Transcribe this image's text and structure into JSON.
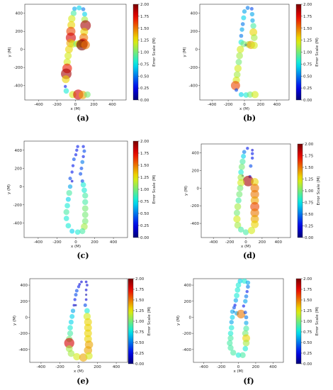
{
  "colorbar": {
    "label": "Error Scale (M)",
    "ticks": [
      "0.00",
      "0.25",
      "0.50",
      "0.75",
      "1.00",
      "1.25",
      "1.50",
      "1.75",
      "2.00"
    ],
    "range": [
      0,
      2
    ],
    "colormap": "jet"
  },
  "chart_data": [
    {
      "type": "scatter",
      "panel_label": "(a)",
      "xlabel": "x (M)",
      "ylabel": "y (M)",
      "xlim": [
        -550,
        550
      ],
      "ylim": [
        -560,
        500
      ],
      "xticks": [
        -400,
        -200,
        0,
        200,
        400
      ],
      "yticks": [
        -400,
        -200,
        0,
        200,
        400
      ],
      "points": [
        {
          "x": -10,
          "y": 450,
          "e": 0.6
        },
        {
          "x": 40,
          "y": 460,
          "e": 0.7
        },
        {
          "x": 85,
          "y": 445,
          "e": 0.5
        },
        {
          "x": -20,
          "y": 400,
          "e": 0.9
        },
        {
          "x": 100,
          "y": 390,
          "e": 0.7
        },
        {
          "x": -40,
          "y": 340,
          "e": 1.2
        },
        {
          "x": 100,
          "y": 330,
          "e": 1.1
        },
        {
          "x": -45,
          "y": 270,
          "e": 1.3
        },
        {
          "x": 110,
          "y": 265,
          "e": 1.9
        },
        {
          "x": -50,
          "y": 200,
          "e": 1.6
        },
        {
          "x": 95,
          "y": 195,
          "e": 1.3
        },
        {
          "x": -50,
          "y": 130,
          "e": 1.8
        },
        {
          "x": 90,
          "y": 130,
          "e": 1.5
        },
        {
          "x": -55,
          "y": 70,
          "e": 1.4
        },
        {
          "x": 85,
          "y": 70,
          "e": 1.7
        },
        {
          "x": -30,
          "y": 60,
          "e": 1.2
        },
        {
          "x": 10,
          "y": 60,
          "e": 1.0
        },
        {
          "x": 40,
          "y": 60,
          "e": 1.3
        },
        {
          "x": 70,
          "y": 50,
          "e": 2.0
        },
        {
          "x": 110,
          "y": 50,
          "e": 1.5
        },
        {
          "x": -70,
          "y": 0,
          "e": 1.3
        },
        {
          "x": -80,
          "y": -70,
          "e": 1.2
        },
        {
          "x": -90,
          "y": -140,
          "e": 1.2
        },
        {
          "x": -90,
          "y": -210,
          "e": 1.7
        },
        {
          "x": -100,
          "y": -270,
          "e": 1.9
        },
        {
          "x": -105,
          "y": -330,
          "e": 1.3
        },
        {
          "x": -110,
          "y": -410,
          "e": 0.3
        },
        {
          "x": -100,
          "y": -460,
          "e": 0.8
        },
        {
          "x": -30,
          "y": -500,
          "e": 1.2
        },
        {
          "x": 30,
          "y": -500,
          "e": 1.8
        },
        {
          "x": 80,
          "y": -505,
          "e": 1.4
        },
        {
          "x": 130,
          "y": -500,
          "e": 1.0
        }
      ]
    },
    {
      "type": "scatter",
      "panel_label": "(b)",
      "xlabel": "x (M)",
      "ylabel": "y (M)",
      "xlim": [
        -550,
        550
      ],
      "ylim": [
        -560,
        500
      ],
      "xticks": [
        -400,
        -200,
        0,
        200,
        400
      ],
      "yticks": [
        -400,
        -200,
        0,
        200,
        400
      ],
      "points": [
        {
          "x": 40,
          "y": 460,
          "e": 0.5
        },
        {
          "x": 90,
          "y": 450,
          "e": 0.4
        },
        {
          "x": 0,
          "y": 420,
          "e": 0.6
        },
        {
          "x": 95,
          "y": 390,
          "e": 0.6
        },
        {
          "x": -10,
          "y": 350,
          "e": 0.7
        },
        {
          "x": 100,
          "y": 320,
          "e": 0.6
        },
        {
          "x": -20,
          "y": 280,
          "e": 0.5
        },
        {
          "x": 110,
          "y": 260,
          "e": 0.9
        },
        {
          "x": -30,
          "y": 220,
          "e": 0.6
        },
        {
          "x": 110,
          "y": 190,
          "e": 1.3
        },
        {
          "x": -40,
          "y": 150,
          "e": 0.5
        },
        {
          "x": 120,
          "y": 130,
          "e": 1.1
        },
        {
          "x": -40,
          "y": 80,
          "e": 0.8
        },
        {
          "x": -10,
          "y": 60,
          "e": 1.0
        },
        {
          "x": 20,
          "y": 50,
          "e": 0.2
        },
        {
          "x": 50,
          "y": 55,
          "e": 1.1
        },
        {
          "x": 80,
          "y": 50,
          "e": 1.4
        },
        {
          "x": 120,
          "y": 45,
          "e": 1.2
        },
        {
          "x": -50,
          "y": 0,
          "e": 1.2
        },
        {
          "x": -60,
          "y": -70,
          "e": 1.1
        },
        {
          "x": -70,
          "y": -140,
          "e": 1.0
        },
        {
          "x": -80,
          "y": -210,
          "e": 1.2
        },
        {
          "x": -90,
          "y": -280,
          "e": 1.1
        },
        {
          "x": -100,
          "y": -340,
          "e": 1.2
        },
        {
          "x": -110,
          "y": -400,
          "e": 1.6
        },
        {
          "x": -100,
          "y": -450,
          "e": 0.4
        },
        {
          "x": -40,
          "y": -500,
          "e": 0.7
        },
        {
          "x": 20,
          "y": -505,
          "e": 0.8
        },
        {
          "x": 70,
          "y": -500,
          "e": 1.0
        },
        {
          "x": 130,
          "y": -500,
          "e": 1.2
        }
      ]
    },
    {
      "type": "scatter",
      "panel_label": "(c)",
      "xlabel": "x (M)",
      "ylabel": "y (M)",
      "xlim": [
        -550,
        550
      ],
      "ylim": [
        -560,
        500
      ],
      "xticks": [
        -400,
        -200,
        0,
        200,
        400
      ],
      "yticks": [
        -400,
        -200,
        0,
        200,
        400
      ],
      "points": [
        {
          "x": 20,
          "y": 440,
          "e": 0.3
        },
        {
          "x": 80,
          "y": 440,
          "e": 0.3
        },
        {
          "x": 10,
          "y": 400,
          "e": 0.3
        },
        {
          "x": 90,
          "y": 390,
          "e": 0.4
        },
        {
          "x": 0,
          "y": 350,
          "e": 0.3
        },
        {
          "x": 80,
          "y": 330,
          "e": 0.3
        },
        {
          "x": -20,
          "y": 300,
          "e": 0.4
        },
        {
          "x": 70,
          "y": 270,
          "e": 0.5
        },
        {
          "x": -30,
          "y": 230,
          "e": 0.3
        },
        {
          "x": 60,
          "y": 200,
          "e": 0.4
        },
        {
          "x": -40,
          "y": 160,
          "e": 0.3
        },
        {
          "x": 50,
          "y": 140,
          "e": 0.4
        },
        {
          "x": -60,
          "y": 90,
          "e": 0.4
        },
        {
          "x": -40,
          "y": 60,
          "e": 0.2
        },
        {
          "x": 70,
          "y": 60,
          "e": 0.4
        },
        {
          "x": 80,
          "y": 20,
          "e": 0.8
        },
        {
          "x": -60,
          "y": 0,
          "e": 0.6
        },
        {
          "x": 90,
          "y": -40,
          "e": 0.8
        },
        {
          "x": -70,
          "y": -70,
          "e": 0.9
        },
        {
          "x": 100,
          "y": -100,
          "e": 0.9
        },
        {
          "x": -80,
          "y": -140,
          "e": 0.7
        },
        {
          "x": 100,
          "y": -170,
          "e": 0.9
        },
        {
          "x": -90,
          "y": -210,
          "e": 0.8
        },
        {
          "x": 100,
          "y": -240,
          "e": 1.0
        },
        {
          "x": -100,
          "y": -280,
          "e": 0.9
        },
        {
          "x": 100,
          "y": -310,
          "e": 1.0
        },
        {
          "x": -100,
          "y": -350,
          "e": 0.8
        },
        {
          "x": 100,
          "y": -380,
          "e": 1.0
        },
        {
          "x": -80,
          "y": -430,
          "e": 0.8
        },
        {
          "x": 90,
          "y": -440,
          "e": 1.1
        },
        {
          "x": -40,
          "y": -490,
          "e": 0.7
        },
        {
          "x": 20,
          "y": -500,
          "e": 0.8
        },
        {
          "x": 70,
          "y": -490,
          "e": 0.9
        }
      ]
    },
    {
      "type": "scatter",
      "panel_label": "(d)",
      "xlabel": "x (M)",
      "ylabel": "y (M)",
      "xlim": [
        -550,
        550
      ],
      "ylim": [
        -560,
        500
      ],
      "xticks": [
        -400,
        -200,
        0,
        200,
        400
      ],
      "yticks": [
        -400,
        -200,
        0,
        200,
        400
      ],
      "points": [
        {
          "x": 20,
          "y": 450,
          "e": 0.3
        },
        {
          "x": 80,
          "y": 430,
          "e": 0.2
        },
        {
          "x": -20,
          "y": 410,
          "e": 0.5
        },
        {
          "x": 80,
          "y": 390,
          "e": 0.3
        },
        {
          "x": -30,
          "y": 360,
          "e": 0.7
        },
        {
          "x": 80,
          "y": 340,
          "e": 0.3
        },
        {
          "x": -40,
          "y": 300,
          "e": 0.9
        },
        {
          "x": -50,
          "y": 240,
          "e": 1.0
        },
        {
          "x": 60,
          "y": 250,
          "e": 0.4
        },
        {
          "x": -60,
          "y": 180,
          "e": 0.8
        },
        {
          "x": -40,
          "y": 140,
          "e": 0.1
        },
        {
          "x": -60,
          "y": 120,
          "e": 1.1
        },
        {
          "x": 50,
          "y": 130,
          "e": 0.3
        },
        {
          "x": 30,
          "y": 80,
          "e": 1.9
        },
        {
          "x": 110,
          "y": 70,
          "e": 1.3
        },
        {
          "x": -60,
          "y": 60,
          "e": 1.2
        },
        {
          "x": 110,
          "y": 0,
          "e": 1.5
        },
        {
          "x": -70,
          "y": 0,
          "e": 1.0
        },
        {
          "x": 110,
          "y": -70,
          "e": 1.5
        },
        {
          "x": -80,
          "y": -70,
          "e": 1.0
        },
        {
          "x": 110,
          "y": -140,
          "e": 1.4
        },
        {
          "x": -90,
          "y": -140,
          "e": 0.9
        },
        {
          "x": 110,
          "y": -210,
          "e": 1.6
        },
        {
          "x": -100,
          "y": -210,
          "e": 1.1
        },
        {
          "x": 110,
          "y": -280,
          "e": 1.5
        },
        {
          "x": -110,
          "y": -280,
          "e": 1.0
        },
        {
          "x": 110,
          "y": -350,
          "e": 1.4
        },
        {
          "x": -110,
          "y": -350,
          "e": 1.2
        },
        {
          "x": 110,
          "y": -410,
          "e": 1.3
        },
        {
          "x": -100,
          "y": -420,
          "e": 1.1
        },
        {
          "x": -60,
          "y": -470,
          "e": 0.9
        },
        {
          "x": 0,
          "y": -500,
          "e": 0.9
        },
        {
          "x": 70,
          "y": -480,
          "e": 1.2
        }
      ]
    },
    {
      "type": "scatter",
      "panel_label": "(e)",
      "xlabel": "x (M)",
      "ylabel": "y (M)",
      "xlim": [
        -520,
        520
      ],
      "ylim": [
        -560,
        480
      ],
      "xticks": [
        -400,
        -200,
        0,
        200,
        400
      ],
      "yticks": [
        -400,
        -200,
        0,
        200,
        400
      ],
      "points": [
        {
          "x": 30,
          "y": 440,
          "e": 0.2
        },
        {
          "x": 80,
          "y": 440,
          "e": 0.2
        },
        {
          "x": 10,
          "y": 410,
          "e": 0.2
        },
        {
          "x": 90,
          "y": 400,
          "e": 0.2
        },
        {
          "x": 0,
          "y": 380,
          "e": 0.3
        },
        {
          "x": 80,
          "y": 340,
          "e": 0.2
        },
        {
          "x": -20,
          "y": 330,
          "e": 0.4
        },
        {
          "x": -30,
          "y": 280,
          "e": 0.4
        },
        {
          "x": 80,
          "y": 280,
          "e": 0.1
        },
        {
          "x": -40,
          "y": 220,
          "e": 0.3
        },
        {
          "x": 80,
          "y": 220,
          "e": 0.2
        },
        {
          "x": -50,
          "y": 150,
          "e": 0.2
        },
        {
          "x": -30,
          "y": 150,
          "e": 0.1
        },
        {
          "x": 70,
          "y": 150,
          "e": 0.4
        },
        {
          "x": -60,
          "y": 80,
          "e": 0.6
        },
        {
          "x": 90,
          "y": 80,
          "e": 0.8
        },
        {
          "x": -70,
          "y": 10,
          "e": 0.7
        },
        {
          "x": 90,
          "y": 10,
          "e": 1.2
        },
        {
          "x": -80,
          "y": -60,
          "e": 0.7
        },
        {
          "x": 100,
          "y": -60,
          "e": 1.3
        },
        {
          "x": -90,
          "y": -130,
          "e": 0.8
        },
        {
          "x": 100,
          "y": -130,
          "e": 1.3
        },
        {
          "x": -90,
          "y": -200,
          "e": 0.9
        },
        {
          "x": 100,
          "y": -200,
          "e": 1.3
        },
        {
          "x": -100,
          "y": -270,
          "e": 1.0
        },
        {
          "x": 100,
          "y": -270,
          "e": 1.3
        },
        {
          "x": -100,
          "y": -320,
          "e": 1.8
        },
        {
          "x": 110,
          "y": -340,
          "e": 1.4
        },
        {
          "x": -100,
          "y": -390,
          "e": 1.1
        },
        {
          "x": 100,
          "y": -410,
          "e": 1.4
        },
        {
          "x": -80,
          "y": -450,
          "e": 1.1
        },
        {
          "x": -20,
          "y": -490,
          "e": 1.2
        },
        {
          "x": 50,
          "y": -500,
          "e": 1.4
        },
        {
          "x": 110,
          "y": -480,
          "e": 1.2
        }
      ]
    },
    {
      "type": "scatter",
      "panel_label": "(f)",
      "xlabel": "x (M)",
      "ylabel": "y (M)",
      "xlim": [
        -520,
        520
      ],
      "ylim": [
        -560,
        480
      ],
      "xticks": [
        -400,
        -200,
        0,
        200,
        400
      ],
      "yticks": [
        -400,
        -200,
        0,
        200,
        400
      ],
      "points": [
        {
          "x": 20,
          "y": 450,
          "e": 0.7
        },
        {
          "x": 70,
          "y": 450,
          "e": 0.8
        },
        {
          "x": 110,
          "y": 430,
          "e": 0.6
        },
        {
          "x": 0,
          "y": 400,
          "e": 0.8
        },
        {
          "x": 110,
          "y": 380,
          "e": 0.5
        },
        {
          "x": -10,
          "y": 340,
          "e": 0.8
        },
        {
          "x": 100,
          "y": 320,
          "e": 0.3
        },
        {
          "x": -20,
          "y": 270,
          "e": 0.8
        },
        {
          "x": 90,
          "y": 260,
          "e": 0.5
        },
        {
          "x": -30,
          "y": 210,
          "e": 0.6
        },
        {
          "x": 80,
          "y": 200,
          "e": 0.6
        },
        {
          "x": -40,
          "y": 150,
          "e": 0.3
        },
        {
          "x": -50,
          "y": 120,
          "e": 0.4
        },
        {
          "x": 60,
          "y": 140,
          "e": 0.3
        },
        {
          "x": -50,
          "y": 70,
          "e": 0.0
        },
        {
          "x": -70,
          "y": 70,
          "e": 0.6
        },
        {
          "x": -20,
          "y": 50,
          "e": 0.6
        },
        {
          "x": 30,
          "y": 40,
          "e": 1.5
        },
        {
          "x": 80,
          "y": 60,
          "e": 0.4
        },
        {
          "x": -70,
          "y": 0,
          "e": 0.7
        },
        {
          "x": 90,
          "y": 0,
          "e": 0.5
        },
        {
          "x": -80,
          "y": -60,
          "e": 0.6
        },
        {
          "x": 90,
          "y": -70,
          "e": 0.6
        },
        {
          "x": -80,
          "y": -130,
          "e": 0.8
        },
        {
          "x": 90,
          "y": -140,
          "e": 0.9
        },
        {
          "x": -90,
          "y": -200,
          "e": 0.8
        },
        {
          "x": 80,
          "y": -200,
          "e": 1.0
        },
        {
          "x": -90,
          "y": -260,
          "e": 0.9
        },
        {
          "x": 90,
          "y": -260,
          "e": 1.3
        },
        {
          "x": -100,
          "y": -320,
          "e": 0.9
        },
        {
          "x": 90,
          "y": -320,
          "e": 1.1
        },
        {
          "x": -90,
          "y": -380,
          "e": 0.9
        },
        {
          "x": 80,
          "y": -390,
          "e": 0.8
        },
        {
          "x": -60,
          "y": -440,
          "e": 0.9
        },
        {
          "x": 0,
          "y": -470,
          "e": 0.8
        },
        {
          "x": 50,
          "y": -470,
          "e": 0.9
        }
      ]
    }
  ]
}
